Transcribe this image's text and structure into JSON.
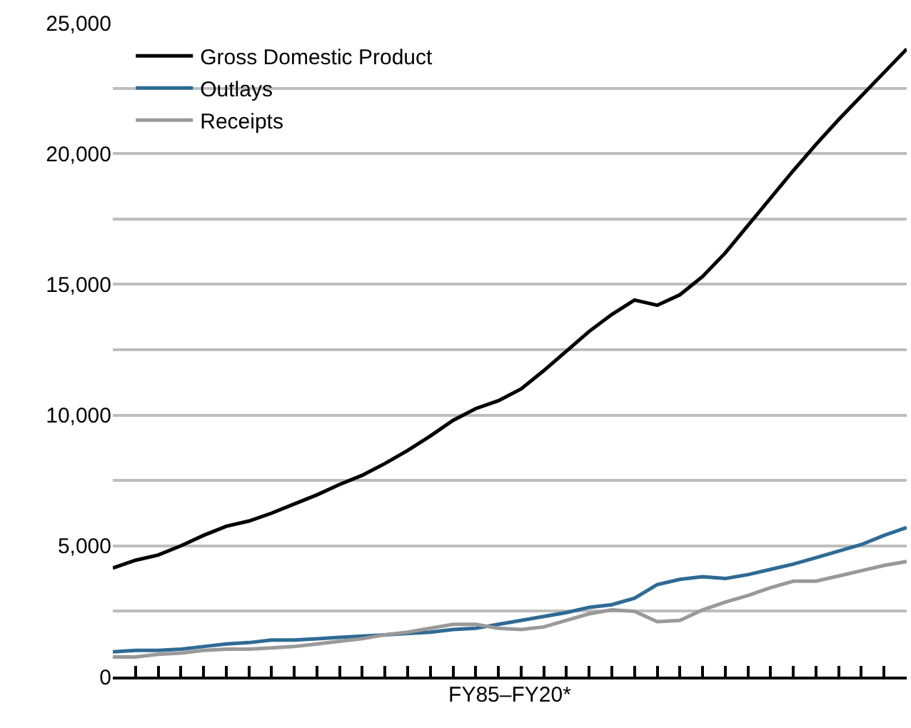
{
  "chart_data": {
    "type": "line",
    "xlabel": "FY85–FY20*",
    "categories": [
      null,
      null,
      null,
      null,
      null,
      null,
      null,
      null,
      null,
      null,
      null,
      null,
      null,
      null,
      null,
      null,
      null,
      null,
      null,
      null,
      null,
      null,
      null,
      null,
      null,
      null,
      null,
      null,
      null,
      null,
      null,
      null,
      null,
      null,
      null,
      null
    ],
    "series": [
      {
        "name": "Gross Domestic Product",
        "color": "#000000",
        "values": [
          4150,
          4450,
          4650,
          5000,
          5400,
          5750,
          5950,
          6250,
          6600,
          6950,
          7350,
          7700,
          8150,
          8650,
          9200,
          9800,
          10250,
          10550,
          11000,
          11700,
          12450,
          13200,
          13850,
          14400,
          14200,
          14600,
          15300,
          16200,
          17250,
          18300,
          19350,
          20350,
          21300,
          22200,
          23100,
          24000
        ]
      },
      {
        "name": "Outlays",
        "color": "#2e6a94",
        "values": [
          950,
          1000,
          1000,
          1050,
          1150,
          1250,
          1300,
          1400,
          1400,
          1450,
          1500,
          1550,
          1600,
          1650,
          1700,
          1800,
          1850,
          2000,
          2150,
          2300,
          2450,
          2650,
          2750,
          3000,
          3520,
          3720,
          3820,
          3750,
          3900,
          4100,
          4300,
          4550,
          4800,
          5050,
          5400,
          5700
        ]
      },
      {
        "name": "Receipts",
        "color": "#999999",
        "values": [
          750,
          750,
          850,
          900,
          1000,
          1050,
          1050,
          1100,
          1150,
          1250,
          1350,
          1450,
          1600,
          1700,
          1850,
          2000,
          2000,
          1850,
          1800,
          1900,
          2150,
          2400,
          2550,
          2500,
          2100,
          2150,
          2550,
          2850,
          3100,
          3400,
          3650,
          3650,
          3850,
          4050,
          4250,
          4400
        ]
      }
    ],
    "ylim": [
      0,
      25000
    ],
    "yticks": [
      {
        "value": 0,
        "label": "0"
      },
      {
        "value": 2500,
        "label": null
      },
      {
        "value": 5000,
        "label": "5,000"
      },
      {
        "value": 7500,
        "label": null
      },
      {
        "value": 10000,
        "label": "10,000"
      },
      {
        "value": 12500,
        "label": null
      },
      {
        "value": 15000,
        "label": "15,000"
      },
      {
        "value": 17500,
        "label": null
      },
      {
        "value": 20000,
        "label": "20,000"
      },
      {
        "value": 22500,
        "label": null
      },
      {
        "value": 25000,
        "label": "25,000"
      }
    ],
    "grid": "y",
    "legend": "top left",
    "tick_labels": "y",
    "marker": "none",
    "line_style": "solid"
  }
}
